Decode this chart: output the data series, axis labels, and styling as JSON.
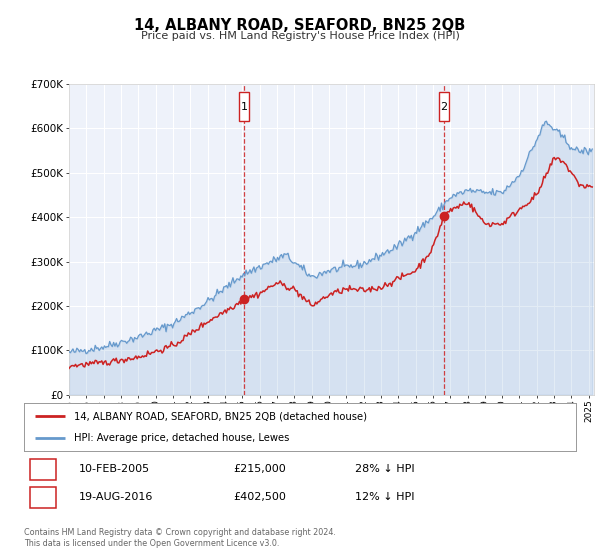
{
  "title": "14, ALBANY ROAD, SEAFORD, BN25 2QB",
  "subtitle": "Price paid vs. HM Land Registry's House Price Index (HPI)",
  "background_color": "#ffffff",
  "plot_bg_color": "#eef2fa",
  "grid_color": "#ffffff",
  "hpi_color": "#6699cc",
  "price_color": "#cc2222",
  "marker_color": "#cc2222",
  "ylim": [
    0,
    700000
  ],
  "yticks": [
    0,
    100000,
    200000,
    300000,
    400000,
    500000,
    600000,
    700000
  ],
  "ytick_labels": [
    "£0",
    "£100K",
    "£200K",
    "£300K",
    "£400K",
    "£500K",
    "£600K",
    "£700K"
  ],
  "xlim_start": 1995.0,
  "xlim_end": 2025.3,
  "sale1_x": 2005.11,
  "sale1_y": 215000,
  "sale2_x": 2016.63,
  "sale2_y": 402500,
  "sale1_date": "10-FEB-2005",
  "sale1_price": "£215,000",
  "sale1_hpi": "28% ↓ HPI",
  "sale2_date": "19-AUG-2016",
  "sale2_price": "£402,500",
  "sale2_hpi": "12% ↓ HPI",
  "legend_line1": "14, ALBANY ROAD, SEAFORD, BN25 2QB (detached house)",
  "legend_line2": "HPI: Average price, detached house, Lewes",
  "footer": "Contains HM Land Registry data © Crown copyright and database right 2024.\nThis data is licensed under the Open Government Licence v3.0."
}
